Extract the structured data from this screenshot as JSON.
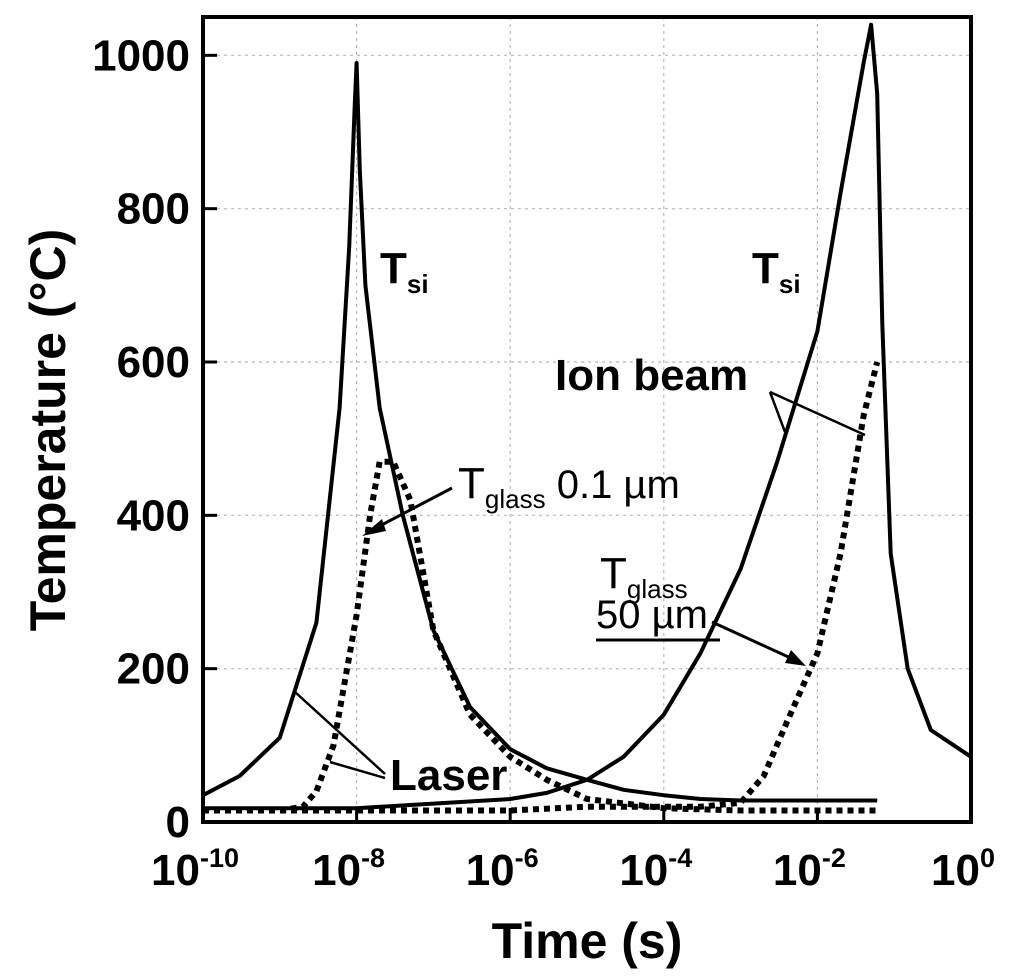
{
  "chart_data": {
    "type": "line",
    "xlabel": "Time (s)",
    "ylabel": "Temperature (°C)",
    "xscale": "log",
    "xlim": [
      1e-10,
      1
    ],
    "ylim": [
      0,
      1050
    ],
    "grid": true,
    "x_ticks": [
      {
        "base": "10",
        "exp": "-10",
        "value": 1e-10
      },
      {
        "base": "10",
        "exp": "-8",
        "value": 1e-08
      },
      {
        "base": "10",
        "exp": "-6",
        "value": 1e-06
      },
      {
        "base": "10",
        "exp": "-4",
        "value": 0.0001
      },
      {
        "base": "10",
        "exp": "-2",
        "value": 0.01
      },
      {
        "base": "10",
        "exp": "0",
        "value": 1
      }
    ],
    "y_ticks": [
      0,
      200,
      400,
      600,
      800,
      1000
    ],
    "series": [
      {
        "style": "solid",
        "points": [
          [
            1e-10,
            35
          ],
          [
            3e-10,
            60
          ],
          [
            1e-09,
            110
          ],
          [
            3e-09,
            260
          ],
          [
            6e-09,
            540
          ],
          [
            8e-09,
            750
          ],
          [
            9.5e-09,
            940
          ],
          [
            1e-08,
            990
          ],
          [
            1.1e-08,
            850
          ],
          [
            1.3e-08,
            700
          ],
          [
            2e-08,
            540
          ],
          [
            4e-08,
            400
          ],
          [
            1e-07,
            250
          ],
          [
            3e-07,
            150
          ],
          [
            1e-06,
            95
          ],
          [
            3e-06,
            70
          ],
          [
            1e-05,
            55
          ],
          [
            3e-05,
            42
          ],
          [
            0.0001,
            35
          ],
          [
            0.0003,
            30
          ],
          [
            0.001,
            28
          ],
          [
            0.01,
            28
          ],
          [
            0.06,
            28
          ]
        ]
      },
      {
        "style": "dotted",
        "points": [
          [
            1e-10,
            15
          ],
          [
            1e-09,
            15
          ],
          [
            2e-09,
            20
          ],
          [
            3e-09,
            40
          ],
          [
            5e-09,
            100
          ],
          [
            1e-08,
            270
          ],
          [
            1.5e-08,
            400
          ],
          [
            2e-08,
            470
          ],
          [
            3e-08,
            470
          ],
          [
            5e-08,
            420
          ],
          [
            1e-07,
            250
          ],
          [
            3e-07,
            140
          ],
          [
            1e-06,
            85
          ],
          [
            3e-06,
            55
          ],
          [
            1e-05,
            30
          ],
          [
            0.0001,
            18
          ],
          [
            0.001,
            15
          ],
          [
            0.06,
            15
          ]
        ]
      },
      {
        "style": "solid",
        "points": [
          [
            1e-10,
            18
          ],
          [
            1e-08,
            18
          ],
          [
            1e-06,
            30
          ],
          [
            3e-06,
            38
          ],
          [
            1e-05,
            55
          ],
          [
            3e-05,
            85
          ],
          [
            0.0001,
            140
          ],
          [
            0.0003,
            220
          ],
          [
            0.001,
            330
          ],
          [
            0.003,
            470
          ],
          [
            0.01,
            640
          ],
          [
            0.02,
            820
          ],
          [
            0.04,
            990
          ],
          [
            0.05,
            1040
          ],
          [
            0.06,
            950
          ],
          [
            0.07,
            650
          ],
          [
            0.09,
            350
          ],
          [
            0.15,
            200
          ],
          [
            0.3,
            120
          ],
          [
            1,
            85
          ]
        ]
      },
      {
        "style": "dotted",
        "points": [
          [
            1e-10,
            15
          ],
          [
            1e-06,
            15
          ],
          [
            1e-05,
            20
          ],
          [
            0.0001,
            20
          ],
          [
            0.0003,
            20
          ],
          [
            0.001,
            25
          ],
          [
            0.002,
            60
          ],
          [
            0.004,
            130
          ],
          [
            0.01,
            220
          ],
          [
            0.02,
            350
          ],
          [
            0.04,
            530
          ],
          [
            0.06,
            600
          ]
        ]
      }
    ],
    "annotations": {
      "tsi_left": {
        "main": "T",
        "sub": "si"
      },
      "tsi_right": {
        "main": "T",
        "sub": "si"
      },
      "tglass_top": {
        "main": "T",
        "sub": "glass",
        "suffix": " 0.1 µm"
      },
      "tglass_bottom": {
        "main": "T",
        "sub": "glass",
        "line2": "50 µm"
      },
      "laser": "Laser",
      "ion_beam": "Ion beam"
    }
  }
}
